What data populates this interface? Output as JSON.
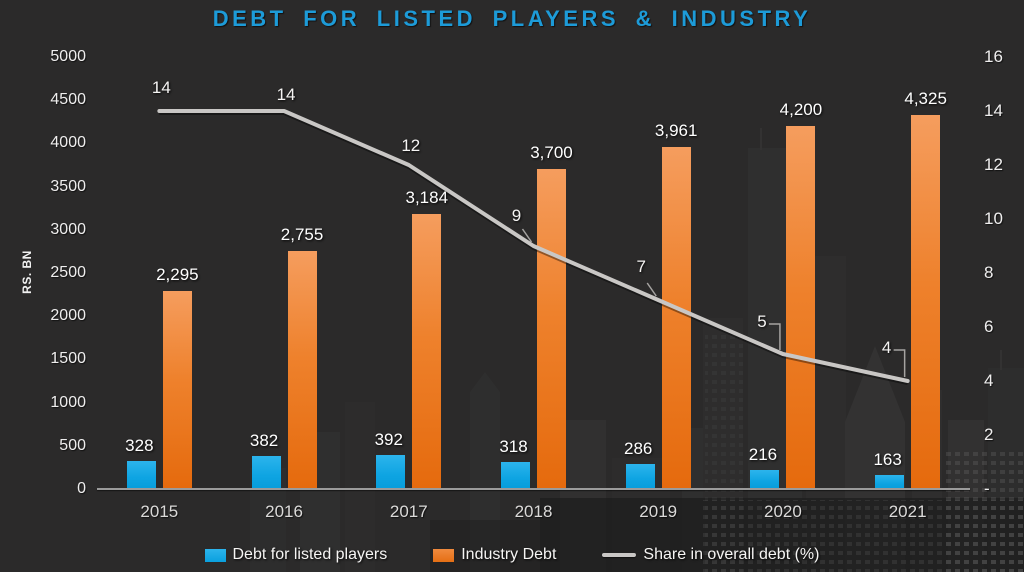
{
  "chart_data": {
    "type": "bar+line",
    "title": "DEBT FOR LISTED PLAYERS & INDUSTRY",
    "ylabel_left": "RS. BN",
    "categories": [
      "2015",
      "2016",
      "2017",
      "2018",
      "2019",
      "2020",
      "2021"
    ],
    "series": [
      {
        "name": "Debt for listed players",
        "type": "bar",
        "axis": "left",
        "color": "#0ea4e2",
        "values": [
          328,
          382,
          392,
          318,
          286,
          216,
          163
        ],
        "labels": [
          "328",
          "382",
          "392",
          "318",
          "286",
          "216",
          "163"
        ]
      },
      {
        "name": "Industry Debt",
        "type": "bar",
        "axis": "left",
        "color": "#e87722",
        "values": [
          2295,
          2755,
          3184,
          3700,
          3961,
          4200,
          4325
        ],
        "labels": [
          "2,295",
          "2,755",
          "3,184",
          "3,700",
          "3,961",
          "4,200",
          "4,325"
        ]
      },
      {
        "name": "Share in overall debt (%)",
        "type": "line",
        "axis": "right",
        "color": "#c9c7c5",
        "values": [
          14,
          14,
          12,
          9,
          7,
          5,
          4
        ],
        "labels": [
          "14",
          "14",
          "12",
          "9",
          "7",
          "5",
          "4"
        ]
      }
    ],
    "ylim_left": [
      0,
      5000
    ],
    "ylim_right": [
      0,
      16
    ],
    "left_axis_ticks": [
      "5000",
      "4500",
      "4000",
      "3500",
      "3000",
      "2500",
      "2000",
      "1500",
      "1000",
      "500",
      "0"
    ],
    "right_axis_ticks": [
      "16",
      "14",
      "12",
      "10",
      "8",
      "6",
      "4",
      "2",
      "-"
    ],
    "grid": false,
    "legend_position": "bottom"
  },
  "colors": {
    "background": "#2b2a2a",
    "title": "#1d9bd8",
    "listed_players_bar": "#0ea4e2",
    "industry_bar": "#e87722",
    "share_line": "#c9c7c5",
    "axis_line": "#9b9b9b",
    "tick_text": "#efeeee",
    "value_label_text": "#ffffff"
  }
}
